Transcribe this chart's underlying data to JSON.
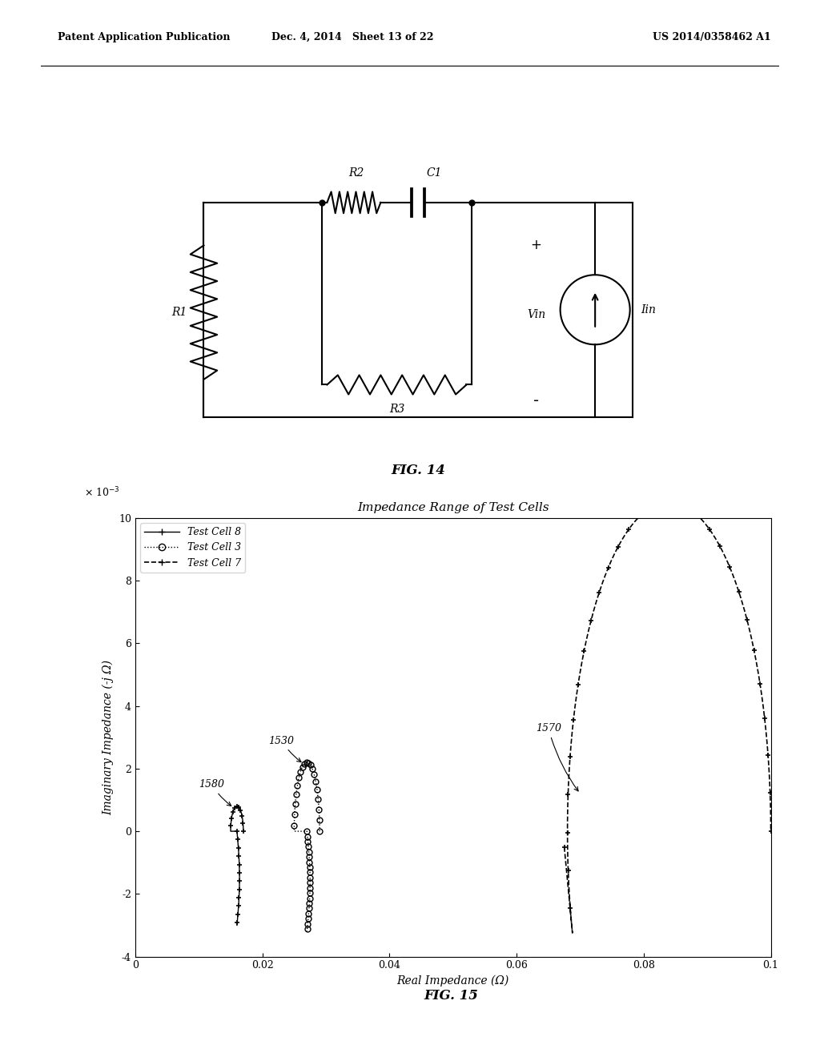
{
  "header_left": "Patent Application Publication",
  "header_mid": "Dec. 4, 2014   Sheet 13 of 22",
  "header_right": "US 2014/0358462 A1",
  "fig14_label": "FIG. 14",
  "fig15_label": "FIG. 15",
  "plot_title": "Impedance Range of Test Cells",
  "xlabel": "Real Impedance (Ω)",
  "ylabel": "Imaginary Impedance (-j Ω)",
  "xlim": [
    0,
    0.1
  ],
  "ylim": [
    -4,
    10
  ],
  "xticks": [
    0,
    0.02,
    0.04,
    0.06,
    0.08,
    0.1
  ],
  "yticks": [
    -4,
    -2,
    0,
    2,
    4,
    6,
    8,
    10
  ],
  "legend_entries": [
    "Test Cell 8",
    "Test Cell 3",
    "Test Cell 7"
  ],
  "annotation_1580": "1580",
  "annotation_1530": "1530",
  "annotation_1570": "1570",
  "background_color": "#ffffff",
  "line_color": "#000000"
}
